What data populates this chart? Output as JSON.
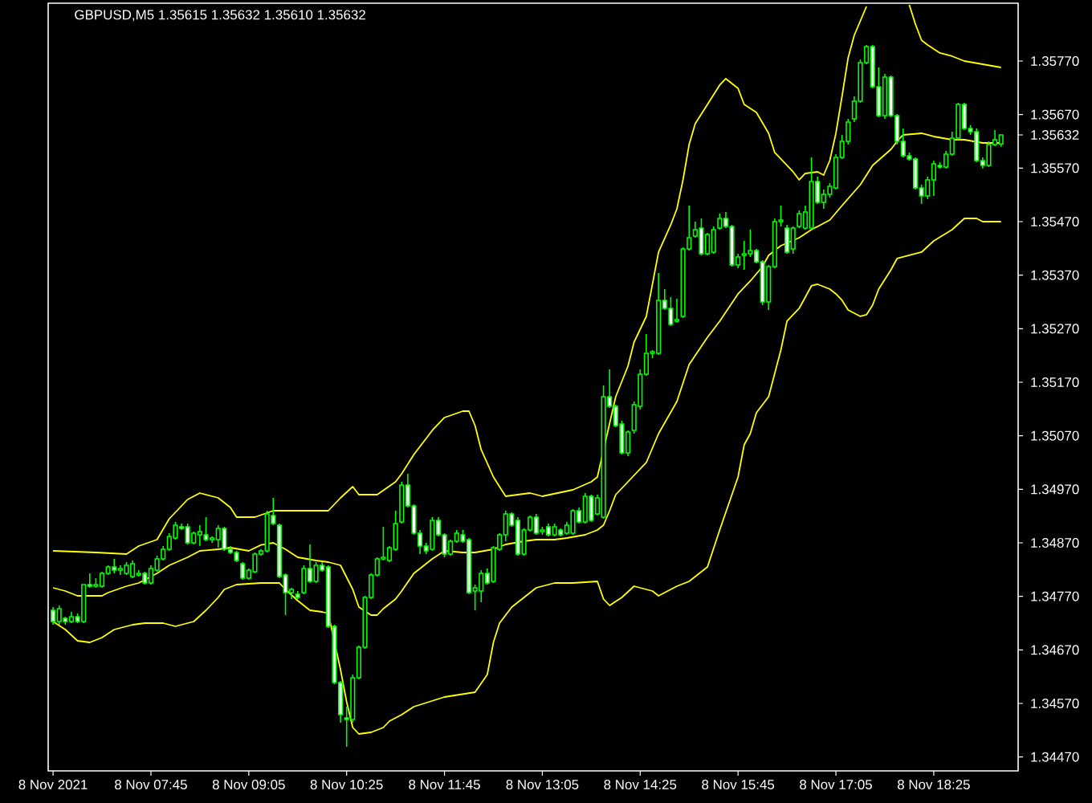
{
  "chart_data": {
    "type": "candlestick",
    "title": "GBPUSD,M5  1.35615 1.35632 1.35610 1.35632",
    "color": "#00ff00",
    "xlim": [
      "2021-11-08T06:21",
      "2021-11-08T19:34"
    ],
    "ylim": [
      1.34444,
      1.35878
    ],
    "xticks": [
      {
        "value": "2021-11-08T06:25",
        "label": "8 Nov 2021"
      },
      {
        "value": "2021-11-08T07:45",
        "label": "8 Nov 07:45"
      },
      {
        "value": "2021-11-08T09:05",
        "label": "8 Nov 09:05"
      },
      {
        "value": "2021-11-08T10:25",
        "label": "8 Nov 10:25"
      },
      {
        "value": "2021-11-08T11:45",
        "label": "8 Nov 11:45"
      },
      {
        "value": "2021-11-08T13:05",
        "label": "8 Nov 13:05"
      },
      {
        "value": "2021-11-08T14:25",
        "label": "8 Nov 14:25"
      },
      {
        "value": "2021-11-08T15:45",
        "label": "8 Nov 15:45"
      },
      {
        "value": "2021-11-08T17:05",
        "label": "8 Nov 17:05"
      },
      {
        "value": "2021-11-08T18:25",
        "label": "8 Nov 18:25"
      }
    ],
    "yticks": [
      {
        "value": 1.3577,
        "label": "1.35770"
      },
      {
        "value": 1.3567,
        "label": "1.35670"
      },
      {
        "value": 1.35632,
        "label": "1.35632"
      },
      {
        "value": 1.3557,
        "label": "1.35570"
      },
      {
        "value": 1.3547,
        "label": "1.35470"
      },
      {
        "value": 1.3537,
        "label": "1.35370"
      },
      {
        "value": 1.3527,
        "label": "1.35270"
      },
      {
        "value": 1.3517,
        "label": "1.35170"
      },
      {
        "value": 1.3507,
        "label": "1.35070"
      },
      {
        "value": 1.3497,
        "label": "1.34970"
      },
      {
        "value": 1.3487,
        "label": "1.34870"
      },
      {
        "value": 1.3477,
        "label": "1.34770"
      },
      {
        "value": 1.3467,
        "label": "1.34670"
      },
      {
        "value": 1.3457,
        "label": "1.34570"
      },
      {
        "value": 1.3447,
        "label": "1.34470"
      }
    ],
    "x": [
      "2021-11-08T06:25",
      "2021-11-08T06:30",
      "2021-11-08T06:35",
      "2021-11-08T06:40",
      "2021-11-08T06:45",
      "2021-11-08T06:50",
      "2021-11-08T06:55",
      "2021-11-08T07:00",
      "2021-11-08T07:05",
      "2021-11-08T07:10",
      "2021-11-08T07:15",
      "2021-11-08T07:20",
      "2021-11-08T07:25",
      "2021-11-08T07:30",
      "2021-11-08T07:35",
      "2021-11-08T07:40",
      "2021-11-08T07:45",
      "2021-11-08T07:50",
      "2021-11-08T07:55",
      "2021-11-08T08:00",
      "2021-11-08T08:05",
      "2021-11-08T08:10",
      "2021-11-08T08:15",
      "2021-11-08T08:20",
      "2021-11-08T08:25",
      "2021-11-08T08:30",
      "2021-11-08T08:35",
      "2021-11-08T08:40",
      "2021-11-08T08:45",
      "2021-11-08T08:50",
      "2021-11-08T08:55",
      "2021-11-08T09:00",
      "2021-11-08T09:05",
      "2021-11-08T09:10",
      "2021-11-08T09:15",
      "2021-11-08T09:20",
      "2021-11-08T09:25",
      "2021-11-08T09:30",
      "2021-11-08T09:35",
      "2021-11-08T09:40",
      "2021-11-08T09:45",
      "2021-11-08T09:50",
      "2021-11-08T09:55",
      "2021-11-08T10:00",
      "2021-11-08T10:05",
      "2021-11-08T10:10",
      "2021-11-08T10:15",
      "2021-11-08T10:20",
      "2021-11-08T10:25",
      "2021-11-08T10:30",
      "2021-11-08T10:35",
      "2021-11-08T10:40",
      "2021-11-08T10:45",
      "2021-11-08T10:50",
      "2021-11-08T10:55",
      "2021-11-08T11:00",
      "2021-11-08T11:05",
      "2021-11-08T11:10",
      "2021-11-08T11:15",
      "2021-11-08T11:20",
      "2021-11-08T11:25",
      "2021-11-08T11:30",
      "2021-11-08T11:35",
      "2021-11-08T11:40",
      "2021-11-08T11:45",
      "2021-11-08T11:50",
      "2021-11-08T11:55",
      "2021-11-08T12:00",
      "2021-11-08T12:05",
      "2021-11-08T12:10",
      "2021-11-08T12:15",
      "2021-11-08T12:20",
      "2021-11-08T12:25",
      "2021-11-08T12:30",
      "2021-11-08T12:35",
      "2021-11-08T12:40",
      "2021-11-08T12:45",
      "2021-11-08T12:50",
      "2021-11-08T12:55",
      "2021-11-08T13:00",
      "2021-11-08T13:05",
      "2021-11-08T13:10",
      "2021-11-08T13:15",
      "2021-11-08T13:20",
      "2021-11-08T13:25",
      "2021-11-08T13:30",
      "2021-11-08T13:35",
      "2021-11-08T13:40",
      "2021-11-08T13:45",
      "2021-11-08T13:50",
      "2021-11-08T13:55",
      "2021-11-08T14:00",
      "2021-11-08T14:05",
      "2021-11-08T14:10",
      "2021-11-08T14:15",
      "2021-11-08T14:20",
      "2021-11-08T14:25",
      "2021-11-08T14:30",
      "2021-11-08T14:35",
      "2021-11-08T14:40",
      "2021-11-08T14:45",
      "2021-11-08T14:50",
      "2021-11-08T14:55",
      "2021-11-08T15:00",
      "2021-11-08T15:05",
      "2021-11-08T15:10",
      "2021-11-08T15:15",
      "2021-11-08T15:20",
      "2021-11-08T15:25",
      "2021-11-08T15:30",
      "2021-11-08T15:35",
      "2021-11-08T15:40",
      "2021-11-08T15:45",
      "2021-11-08T15:50",
      "2021-11-08T15:55",
      "2021-11-08T16:00",
      "2021-11-08T16:05",
      "2021-11-08T16:10",
      "2021-11-08T16:15",
      "2021-11-08T16:20",
      "2021-11-08T16:25",
      "2021-11-08T16:30",
      "2021-11-08T16:35",
      "2021-11-08T16:40",
      "2021-11-08T16:45",
      "2021-11-08T16:50",
      "2021-11-08T16:55",
      "2021-11-08T17:00",
      "2021-11-08T17:05",
      "2021-11-08T17:10",
      "2021-11-08T17:15",
      "2021-11-08T17:20",
      "2021-11-08T17:25",
      "2021-11-08T17:30",
      "2021-11-08T17:35",
      "2021-11-08T17:40",
      "2021-11-08T17:45",
      "2021-11-08T17:50",
      "2021-11-08T17:55",
      "2021-11-08T18:00",
      "2021-11-08T18:05",
      "2021-11-08T18:10",
      "2021-11-08T18:15",
      "2021-11-08T18:20",
      "2021-11-08T18:25",
      "2021-11-08T18:30",
      "2021-11-08T18:35",
      "2021-11-08T18:40",
      "2021-11-08T18:45",
      "2021-11-08T18:50",
      "2021-11-08T18:55",
      "2021-11-08T19:00",
      "2021-11-08T19:05",
      "2021-11-08T19:10",
      "2021-11-08T19:15",
      "2021-11-08T19:20"
    ],
    "ohlc": [
      [
        1.34744,
        1.3475,
        1.34717,
        1.34723
      ],
      [
        1.34723,
        1.34753,
        1.34717,
        1.34747
      ],
      [
        1.34729,
        1.34732,
        1.34717,
        1.34723
      ],
      [
        1.34723,
        1.34741,
        1.3472,
        1.34732
      ],
      [
        1.34732,
        1.34738,
        1.3472,
        1.34723
      ],
      [
        1.34723,
        1.34792,
        1.3472,
        1.34792
      ],
      [
        1.34792,
        1.34813,
        1.34786,
        1.34789
      ],
      [
        1.34789,
        1.34804,
        1.34786,
        1.34792
      ],
      [
        1.34789,
        1.34816,
        1.34786,
        1.34813
      ],
      [
        1.34813,
        1.34828,
        1.3481,
        1.34825
      ],
      [
        1.34825,
        1.3484,
        1.34813,
        1.34819
      ],
      [
        1.34819,
        1.34828,
        1.3481,
        1.34822
      ],
      [
        1.34813,
        1.34834,
        1.3481,
        1.34828
      ],
      [
        1.34807,
        1.34837,
        1.34804,
        1.34831
      ],
      [
        1.3481,
        1.34819,
        1.34807,
        1.34813
      ],
      [
        1.34813,
        1.34816,
        1.34792,
        1.34795
      ],
      [
        1.34795,
        1.34828,
        1.34792,
        1.34822
      ],
      [
        1.34819,
        1.34846,
        1.34816,
        1.3484
      ],
      [
        1.3484,
        1.34864,
        1.34837,
        1.34858
      ],
      [
        1.34858,
        1.34888,
        1.34855,
        1.34882
      ],
      [
        1.34879,
        1.34909,
        1.34876,
        1.34903
      ],
      [
        1.349,
        1.34906,
        1.34894,
        1.34897
      ],
      [
        1.349,
        1.34906,
        1.34867,
        1.3487
      ],
      [
        1.3487,
        1.34891,
        1.34867,
        1.34888
      ],
      [
        1.34885,
        1.34903,
        1.34864,
        1.34891
      ],
      [
        1.34885,
        1.34918,
        1.34873,
        1.34876
      ],
      [
        1.34876,
        1.34882,
        1.3487,
        1.34879
      ],
      [
        1.34876,
        1.34903,
        1.34861,
        1.34897
      ],
      [
        1.34897,
        1.349,
        1.34855,
        1.34858
      ],
      [
        1.34858,
        1.34864,
        1.34849,
        1.34852
      ],
      [
        1.34852,
        1.34855,
        1.34834,
        1.34837
      ],
      [
        1.34831,
        1.34834,
        1.34801,
        1.34804
      ],
      [
        1.34804,
        1.34822,
        1.34801,
        1.34819
      ],
      [
        1.34816,
        1.34852,
        1.34813,
        1.34849
      ],
      [
        1.34849,
        1.34858,
        1.34846,
        1.34855
      ],
      [
        1.34855,
        1.3493,
        1.34852,
        1.34924
      ],
      [
        1.34921,
        1.34954,
        1.34903,
        1.34906
      ],
      [
        1.34903,
        1.34906,
        1.34804,
        1.34807
      ],
      [
        1.3481,
        1.34813,
        1.34735,
        1.34777
      ],
      [
        1.34777,
        1.34786,
        1.34765,
        1.34783
      ],
      [
        1.34774,
        1.3478,
        1.34765,
        1.34768
      ],
      [
        1.34777,
        1.34828,
        1.34774,
        1.34822
      ],
      [
        1.34822,
        1.34867,
        1.34795,
        1.34798
      ],
      [
        1.34798,
        1.34834,
        1.34795,
        1.34828
      ],
      [
        1.34828,
        1.34834,
        1.34816,
        1.34819
      ],
      [
        1.34825,
        1.34828,
        1.34711,
        1.34714
      ],
      [
        1.34714,
        1.34717,
        1.34606,
        1.34609
      ],
      [
        1.34609,
        1.34612,
        1.34534,
        1.34549
      ],
      [
        1.34543,
        1.34564,
        1.34489,
        1.3454
      ],
      [
        1.3454,
        1.34624,
        1.34534,
        1.34618
      ],
      [
        1.34618,
        1.34678,
        1.34615,
        1.34675
      ],
      [
        1.34675,
        1.34771,
        1.34672,
        1.34768
      ],
      [
        1.34768,
        1.34813,
        1.34765,
        1.3481
      ],
      [
        1.3481,
        1.34843,
        1.34807,
        1.3484
      ],
      [
        1.3484,
        1.349,
        1.34837,
        1.34843
      ],
      [
        1.34837,
        1.34864,
        1.34834,
        1.34861
      ],
      [
        1.34858,
        1.3493,
        1.34855,
        1.34906
      ],
      [
        1.34909,
        1.34984,
        1.34906,
        1.34978
      ],
      [
        1.34978,
        1.34999,
        1.34936,
        1.34939
      ],
      [
        1.34939,
        1.34942,
        1.34885,
        1.34888
      ],
      [
        1.34888,
        1.34894,
        1.34849,
        1.34864
      ],
      [
        1.34864,
        1.3487,
        1.34849,
        1.34855
      ],
      [
        1.34858,
        1.34918,
        1.34855,
        1.34912
      ],
      [
        1.34912,
        1.34918,
        1.34882,
        1.34885
      ],
      [
        1.34885,
        1.34888,
        1.34843,
        1.34849
      ],
      [
        1.34849,
        1.34876,
        1.34846,
        1.34873
      ],
      [
        1.34873,
        1.34894,
        1.3487,
        1.34888
      ],
      [
        1.34885,
        1.34894,
        1.3487,
        1.34873
      ],
      [
        1.34876,
        1.34879,
        1.34774,
        1.34777
      ],
      [
        1.3478,
        1.34792,
        1.34744,
        1.34786
      ],
      [
        1.3478,
        1.34819,
        1.34759,
        1.34813
      ],
      [
        1.34813,
        1.34822,
        1.34792,
        1.34795
      ],
      [
        1.34798,
        1.34864,
        1.34795,
        1.34861
      ],
      [
        1.34858,
        1.34888,
        1.34855,
        1.34885
      ],
      [
        1.34885,
        1.3493,
        1.34873,
        1.34924
      ],
      [
        1.34924,
        1.34927,
        1.349,
        1.34903
      ],
      [
        1.34912,
        1.34918,
        1.34846,
        1.34849
      ],
      [
        1.34849,
        1.34897,
        1.34846,
        1.34894
      ],
      [
        1.34894,
        1.34921,
        1.34891,
        1.34918
      ],
      [
        1.34918,
        1.34924,
        1.34885,
        1.34888
      ],
      [
        1.34891,
        1.349,
        1.34885,
        1.34894
      ],
      [
        1.349,
        1.34906,
        1.34882,
        1.34885
      ],
      [
        1.34885,
        1.34906,
        1.34882,
        1.349
      ],
      [
        1.34894,
        1.34897,
        1.34882,
        1.34885
      ],
      [
        1.34888,
        1.34909,
        1.34885,
        1.34903
      ],
      [
        1.34888,
        1.34933,
        1.34885,
        1.3493
      ],
      [
        1.3493,
        1.34936,
        1.34906,
        1.34909
      ],
      [
        1.34909,
        1.34963,
        1.34906,
        1.34957
      ],
      [
        1.34957,
        1.3496,
        1.34909,
        1.34912
      ],
      [
        1.34924,
        1.3496,
        1.34921,
        1.34954
      ],
      [
        1.34918,
        1.35164,
        1.34915,
        1.35143
      ],
      [
        1.35143,
        1.35194,
        1.35122,
        1.35125
      ],
      [
        1.35125,
        1.35128,
        1.35086,
        1.35089
      ],
      [
        1.35092,
        1.35098,
        1.35035,
        1.35038
      ],
      [
        1.35038,
        1.3508,
        1.35032,
        1.35077
      ],
      [
        1.3508,
        1.35134,
        1.35074,
        1.35128
      ],
      [
        1.35125,
        1.35194,
        1.35119,
        1.35185
      ],
      [
        1.35185,
        1.3526,
        1.35182,
        1.35224
      ],
      [
        1.35224,
        1.3523,
        1.35215,
        1.35227
      ],
      [
        1.35224,
        1.35374,
        1.35221,
        1.35323
      ],
      [
        1.35323,
        1.35344,
        1.35305,
        1.35308
      ],
      [
        1.35308,
        1.35329,
        1.35275,
        1.35278
      ],
      [
        1.35284,
        1.35326,
        1.35281,
        1.35287
      ],
      [
        1.35293,
        1.35422,
        1.3529,
        1.35419
      ],
      [
        1.35419,
        1.355,
        1.35416,
        1.3544
      ],
      [
        1.35443,
        1.3547,
        1.3544,
        1.35455
      ],
      [
        1.35458,
        1.35476,
        1.35407,
        1.3541
      ],
      [
        1.3541,
        1.35449,
        1.35407,
        1.35446
      ],
      [
        1.35413,
        1.35461,
        1.3541,
        1.35455
      ],
      [
        1.35458,
        1.35485,
        1.35455,
        1.35476
      ],
      [
        1.35476,
        1.35488,
        1.35458,
        1.35461
      ],
      [
        1.35461,
        1.35464,
        1.35386,
        1.35389
      ],
      [
        1.35389,
        1.3541,
        1.35383,
        1.35404
      ],
      [
        1.35407,
        1.35434,
        1.3538,
        1.3541
      ],
      [
        1.3541,
        1.35455,
        1.35404,
        1.35416
      ],
      [
        1.35416,
        1.35419,
        1.35392,
        1.35395
      ],
      [
        1.35395,
        1.35398,
        1.35314,
        1.3532
      ],
      [
        1.3532,
        1.35389,
        1.35305,
        1.35386
      ],
      [
        1.35386,
        1.35476,
        1.35383,
        1.3547
      ],
      [
        1.3547,
        1.355,
        1.35461,
        1.35473
      ],
      [
        1.35458,
        1.35464,
        1.3541,
        1.35413
      ],
      [
        1.35419,
        1.35461,
        1.3541,
        1.35458
      ],
      [
        1.35461,
        1.35491,
        1.35458,
        1.35485
      ],
      [
        1.35458,
        1.355,
        1.35455,
        1.35488
      ],
      [
        1.35458,
        1.3559,
        1.35455,
        1.35545
      ],
      [
        1.35545,
        1.35554,
        1.35503,
        1.35506
      ],
      [
        1.35506,
        1.3553,
        1.35494,
        1.35521
      ],
      [
        1.35521,
        1.35542,
        1.35515,
        1.35536
      ],
      [
        1.35533,
        1.35596,
        1.3553,
        1.3559
      ],
      [
        1.3559,
        1.35632,
        1.35587,
        1.3562
      ],
      [
        1.3562,
        1.35662,
        1.35614,
        1.35656
      ],
      [
        1.35662,
        1.35704,
        1.35656,
        1.35695
      ],
      [
        1.35695,
        1.35773,
        1.35692,
        1.35767
      ],
      [
        1.35767,
        1.358,
        1.35764,
        1.35797
      ],
      [
        1.35797,
        1.358,
        1.35719,
        1.35722
      ],
      [
        1.35722,
        1.35758,
        1.35665,
        1.35668
      ],
      [
        1.35668,
        1.35746,
        1.35662,
        1.3574
      ],
      [
        1.3574,
        1.35743,
        1.35665,
        1.35668
      ],
      [
        1.35668,
        1.35671,
        1.35614,
        1.3562
      ],
      [
        1.3562,
        1.35644,
        1.3559,
        1.35593
      ],
      [
        1.35593,
        1.35599,
        1.35584,
        1.35587
      ],
      [
        1.35587,
        1.3559,
        1.3553,
        1.35533
      ],
      [
        1.35533,
        1.35539,
        1.35503,
        1.35518
      ],
      [
        1.35518,
        1.35554,
        1.35512,
        1.35548
      ],
      [
        1.35548,
        1.35584,
        1.35518,
        1.35578
      ],
      [
        1.35575,
        1.35581,
        1.35569,
        1.35572
      ],
      [
        1.35572,
        1.35602,
        1.35569,
        1.35596
      ],
      [
        1.35596,
        1.35638,
        1.35593,
        1.35626
      ],
      [
        1.35626,
        1.35692,
        1.35623,
        1.35689
      ],
      [
        1.35689,
        1.35692,
        1.35641,
        1.35644
      ],
      [
        1.35644,
        1.3565,
        1.35632,
        1.35638
      ],
      [
        1.35638,
        1.35644,
        1.35581,
        1.35584
      ],
      [
        1.35584,
        1.3559,
        1.35569,
        1.35575
      ],
      [
        1.35575,
        1.3562,
        1.35572,
        1.35614
      ],
      [
        1.35614,
        1.35641,
        1.35611,
        1.35623
      ],
      [
        1.35615,
        1.35632,
        1.3561,
        1.35632
      ]
    ],
    "series": [
      {
        "type": "line",
        "color": "#ffff00",
        "x": [
          "2021-11-08T06:25",
          "2021-11-08T07:00",
          "2021-11-08T07:25",
          "2021-11-08T07:35",
          "2021-11-08T07:50",
          "2021-11-08T08:00",
          "2021-11-08T08:15",
          "2021-11-08T08:25",
          "2021-11-08T08:40",
          "2021-11-08T08:50",
          "2021-11-08T08:55",
          "2021-11-08T09:10",
          "2021-11-08T09:25",
          "2021-11-08T10:00",
          "2021-11-08T10:10",
          "2021-11-08T10:20",
          "2021-11-08T10:30",
          "2021-11-08T10:35",
          "2021-11-08T10:50",
          "2021-11-08T11:05",
          "2021-11-08T11:10",
          "2021-11-08T11:20",
          "2021-11-08T11:35",
          "2021-11-08T11:45",
          "2021-11-08T12:00",
          "2021-11-08T12:05",
          "2021-11-08T12:10",
          "2021-11-08T12:15",
          "2021-11-08T12:25",
          "2021-11-08T12:35",
          "2021-11-08T12:55",
          "2021-11-08T13:05",
          "2021-11-08T13:30",
          "2021-11-08T13:45",
          "2021-11-08T13:50",
          "2021-11-08T14:05",
          "2021-11-08T14:15",
          "2021-11-08T14:20",
          "2021-11-08T14:30",
          "2021-11-08T14:35",
          "2021-11-08T14:40",
          "2021-11-08T14:50",
          "2021-11-08T14:55",
          "2021-11-08T15:00",
          "2021-11-08T15:05",
          "2021-11-08T15:10",
          "2021-11-08T15:20",
          "2021-11-08T15:30",
          "2021-11-08T15:35",
          "2021-11-08T15:45",
          "2021-11-08T15:50",
          "2021-11-08T16:00",
          "2021-11-08T16:10",
          "2021-11-08T16:15",
          "2021-11-08T16:30",
          "2021-11-08T16:35",
          "2021-11-08T16:40",
          "2021-11-08T16:50",
          "2021-11-08T16:55",
          "2021-11-08T17:00",
          "2021-11-08T17:05",
          "2021-11-08T17:10",
          "2021-11-08T17:15",
          "2021-11-08T17:20",
          "2021-11-08T17:25",
          "2021-11-08T17:30",
          "2021-11-08T17:45",
          "2021-11-08T18:05",
          "2021-11-08T18:10",
          "2021-11-08T18:15",
          "2021-11-08T18:20",
          "2021-11-08T18:30",
          "2021-11-08T18:40",
          "2021-11-08T18:50",
          "2021-11-08T19:05",
          "2021-11-08T19:20"
        ],
        "values": [
          1.34855,
          1.34852,
          1.34849,
          1.34864,
          1.34876,
          1.34915,
          1.34951,
          1.34963,
          1.34954,
          1.34936,
          1.34918,
          1.34918,
          1.3493,
          1.3493,
          1.3493,
          1.34954,
          1.34975,
          1.3496,
          1.3496,
          1.34984,
          1.34999,
          1.35035,
          1.3508,
          1.35104,
          1.35116,
          1.35116,
          1.35089,
          1.35044,
          1.34993,
          1.34957,
          1.34963,
          1.34957,
          1.34969,
          1.34984,
          1.34993,
          1.35143,
          1.352,
          1.35245,
          1.35293,
          1.35353,
          1.35413,
          1.35464,
          1.35494,
          1.35548,
          1.35614,
          1.35653,
          1.35689,
          1.35725,
          1.35737,
          1.35719,
          1.35689,
          1.35674,
          1.35635,
          1.35599,
          1.35563,
          1.35548,
          1.3556,
          1.35563,
          1.35557,
          1.35584,
          1.35635,
          1.35704,
          1.35776,
          1.35818,
          1.35845,
          1.35872,
          null,
          1.35875,
          1.35839,
          1.35809,
          1.358,
          1.35785,
          1.35779,
          1.3577,
          1.35764,
          1.35758
        ]
      },
      {
        "type": "line",
        "color": "#ffff00",
        "x": [
          "2021-11-08T06:25",
          "2021-11-08T06:35",
          "2021-11-08T06:45",
          "2021-11-08T07:05",
          "2021-11-08T07:10",
          "2021-11-08T07:25",
          "2021-11-08T07:35",
          "2021-11-08T07:50",
          "2021-11-08T08:00",
          "2021-11-08T08:15",
          "2021-11-08T08:25",
          "2021-11-08T08:40",
          "2021-11-08T08:50",
          "2021-11-08T09:05",
          "2021-11-08T09:15",
          "2021-11-08T09:25",
          "2021-11-08T09:35",
          "2021-11-08T09:45",
          "2021-11-08T10:00",
          "2021-11-08T10:10",
          "2021-11-08T10:20",
          "2021-11-08T10:30",
          "2021-11-08T10:35",
          "2021-11-08T10:45",
          "2021-11-08T10:50",
          "2021-11-08T10:55",
          "2021-11-08T11:05",
          "2021-11-08T11:10",
          "2021-11-08T11:20",
          "2021-11-08T11:35",
          "2021-11-08T11:45",
          "2021-11-08T12:00",
          "2021-11-08T12:10",
          "2021-11-08T12:25",
          "2021-11-08T12:35",
          "2021-11-08T12:50",
          "2021-11-08T13:00",
          "2021-11-08T13:15",
          "2021-11-08T13:25",
          "2021-11-08T13:40",
          "2021-11-08T13:50",
          "2021-11-08T13:55",
          "2021-11-08T14:00",
          "2021-11-08T14:05",
          "2021-11-08T14:15",
          "2021-11-08T14:30",
          "2021-11-08T14:40",
          "2021-11-08T14:55",
          "2021-11-08T15:05",
          "2021-11-08T15:20",
          "2021-11-08T15:30",
          "2021-11-08T15:45",
          "2021-11-08T15:55",
          "2021-11-08T16:05",
          "2021-11-08T16:10",
          "2021-11-08T16:20",
          "2021-11-08T16:35",
          "2021-11-08T16:45",
          "2021-11-08T17:00",
          "2021-11-08T17:10",
          "2021-11-08T17:25",
          "2021-11-08T17:35",
          "2021-11-08T17:50",
          "2021-11-08T17:55",
          "2021-11-08T18:00",
          "2021-11-08T18:15",
          "2021-11-08T18:25",
          "2021-11-08T18:40",
          "2021-11-08T18:50",
          "2021-11-08T19:05",
          "2021-11-08T19:20"
        ],
        "values": [
          1.34786,
          1.3478,
          1.34771,
          1.34771,
          1.34777,
          1.34789,
          1.34795,
          1.34813,
          1.34828,
          1.34843,
          1.34855,
          1.34858,
          1.34861,
          1.34855,
          1.34866,
          1.3487,
          1.34858,
          1.34843,
          1.34837,
          1.34834,
          1.34828,
          1.34783,
          1.3475,
          1.34735,
          1.34735,
          1.34747,
          1.34765,
          1.3478,
          1.34813,
          1.3484,
          1.34855,
          1.34852,
          1.34852,
          1.34858,
          1.34867,
          1.34873,
          1.34876,
          1.34876,
          1.34879,
          1.34885,
          1.34894,
          1.34903,
          1.3493,
          1.3496,
          1.34984,
          1.3502,
          1.35074,
          1.35134,
          1.35203,
          1.35254,
          1.35284,
          1.35335,
          1.35359,
          1.35386,
          1.35407,
          1.35425,
          1.3544,
          1.35455,
          1.35473,
          1.355,
          1.35539,
          1.35575,
          1.35605,
          1.3562,
          1.35632,
          1.35635,
          1.35629,
          1.35623,
          1.35623,
          1.35617,
          1.35617
        ]
      },
      {
        "type": "line",
        "color": "#ffff00",
        "x": [
          "2021-11-08T06:25",
          "2021-11-08T06:35",
          "2021-11-08T06:45",
          "2021-11-08T06:55",
          "2021-11-08T07:05",
          "2021-11-08T07:15",
          "2021-11-08T07:30",
          "2021-11-08T07:40",
          "2021-11-08T07:55",
          "2021-11-08T08:05",
          "2021-11-08T08:20",
          "2021-11-08T08:30",
          "2021-11-08T08:40",
          "2021-11-08T08:45",
          "2021-11-08T08:55",
          "2021-11-08T09:15",
          "2021-11-08T09:30",
          "2021-11-08T09:35",
          "2021-11-08T09:45",
          "2021-11-08T09:55",
          "2021-11-08T10:05",
          "2021-11-08T10:10",
          "2021-11-08T10:20",
          "2021-11-08T10:25",
          "2021-11-08T10:30",
          "2021-11-08T10:35",
          "2021-11-08T10:45",
          "2021-11-08T10:55",
          "2021-11-08T11:00",
          "2021-11-08T11:10",
          "2021-11-08T11:20",
          "2021-11-08T11:45",
          "2021-11-08T12:10",
          "2021-11-08T12:20",
          "2021-11-08T12:25",
          "2021-11-08T12:30",
          "2021-11-08T12:40",
          "2021-11-08T13:00",
          "2021-11-08T13:15",
          "2021-11-08T13:30",
          "2021-11-08T13:50",
          "2021-11-08T13:55",
          "2021-11-08T14:00",
          "2021-11-08T14:10",
          "2021-11-08T14:20",
          "2021-11-08T14:35",
          "2021-11-08T14:40",
          "2021-11-08T14:55",
          "2021-11-08T15:05",
          "2021-11-08T15:20",
          "2021-11-08T15:30",
          "2021-11-08T15:45",
          "2021-11-08T15:50",
          "2021-11-08T15:55",
          "2021-11-08T16:00",
          "2021-11-08T16:10",
          "2021-11-08T16:20",
          "2021-11-08T16:25",
          "2021-11-08T16:35",
          "2021-11-08T16:40",
          "2021-11-08T16:45",
          "2021-11-08T16:50",
          "2021-11-08T17:00",
          "2021-11-08T17:05",
          "2021-11-08T17:10",
          "2021-11-08T17:15",
          "2021-11-08T17:25",
          "2021-11-08T17:30",
          "2021-11-08T17:35",
          "2021-11-08T17:40",
          "2021-11-08T17:50",
          "2021-11-08T17:55",
          "2021-11-08T18:00",
          "2021-11-08T18:15",
          "2021-11-08T18:25",
          "2021-11-08T18:40",
          "2021-11-08T18:50",
          "2021-11-08T19:00",
          "2021-11-08T19:05",
          "2021-11-08T19:20"
        ],
        "values": [
          1.34723,
          1.34708,
          1.34687,
          1.34684,
          1.34693,
          1.34708,
          1.34717,
          1.3472,
          1.3472,
          1.34714,
          1.34723,
          1.34744,
          1.34768,
          1.34783,
          1.34792,
          1.34795,
          1.34795,
          1.34783,
          1.34762,
          1.34744,
          1.34741,
          1.34738,
          1.34633,
          1.34573,
          1.34525,
          1.34513,
          1.34516,
          1.34525,
          1.34537,
          1.34549,
          1.34564,
          1.34582,
          1.34591,
          1.34624,
          1.34684,
          1.3472,
          1.3475,
          1.34786,
          1.34795,
          1.34795,
          1.34798,
          1.34765,
          1.34753,
          1.34768,
          1.34789,
          1.3478,
          1.34771,
          1.34789,
          1.34798,
          1.34825,
          1.34894,
          1.34993,
          1.35053,
          1.35074,
          1.35113,
          1.35143,
          1.3523,
          1.35284,
          1.35308,
          1.35329,
          1.3535,
          1.35353,
          1.35344,
          1.35335,
          1.35323,
          1.35305,
          1.35293,
          1.35296,
          1.35314,
          1.35344,
          1.3538,
          1.35401,
          1.35404,
          1.35413,
          1.35434,
          1.35455,
          1.35476,
          1.35476,
          1.3547,
          1.3547
        ]
      }
    ]
  }
}
